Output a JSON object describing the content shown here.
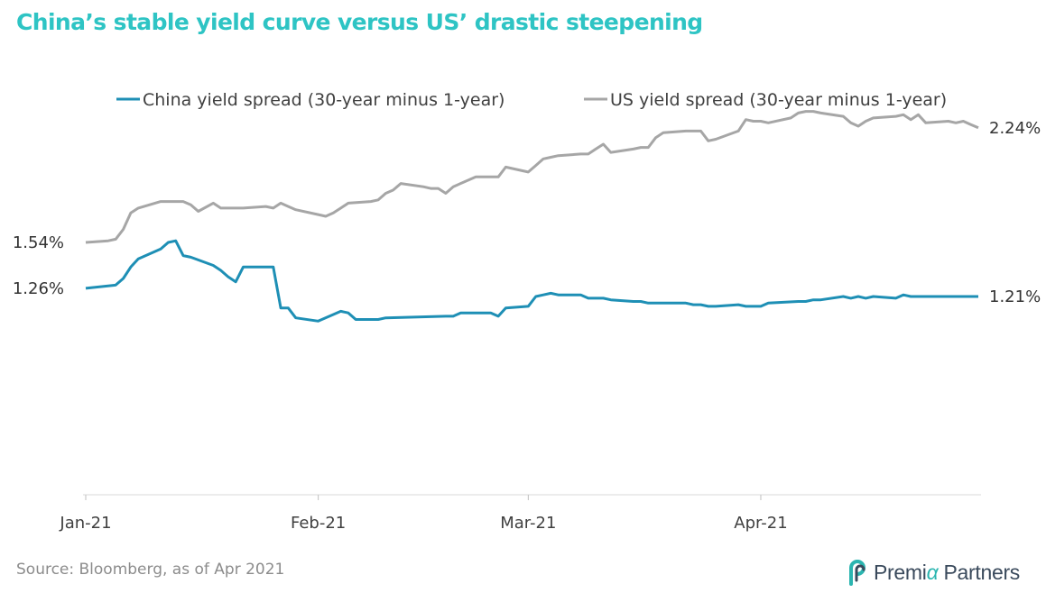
{
  "title": "China’s stable yield curve versus US’ drastic steepening",
  "source": "Source: Bloomberg, as of Apr 2021",
  "logo": {
    "name": "Premia Partners",
    "text_a": "Premi",
    "text_b": "α",
    "text_c": " Partners"
  },
  "colors": {
    "title": "#2ec4c4",
    "china": "#1e8fb5",
    "us": "#a6a6a6",
    "axis": "#d9d9d9"
  },
  "chart_data": {
    "type": "line",
    "title": "China’s stable yield curve versus US’ drastic steepening",
    "x_ticks": [
      "Jan-21",
      "Feb-21",
      "Mar-21",
      "Apr-21"
    ],
    "x_start": "2021-01-01",
    "x_end": "2021-04-30",
    "ylim": [
      0,
      2.8
    ],
    "grid": false,
    "legend": "top",
    "series": [
      {
        "name": "China yield spread (30-year minus 1-year)",
        "end_labels": {
          "start": "1.26%",
          "end": "1.21%"
        },
        "points": [
          [
            "2021-01-01",
            1.26
          ],
          [
            "2021-01-05",
            1.28
          ],
          [
            "2021-01-06",
            1.32
          ],
          [
            "2021-01-07",
            1.39
          ],
          [
            "2021-01-08",
            1.44
          ],
          [
            "2021-01-11",
            1.5
          ],
          [
            "2021-01-12",
            1.54
          ],
          [
            "2021-01-13",
            1.55
          ],
          [
            "2021-01-14",
            1.46
          ],
          [
            "2021-01-15",
            1.45
          ],
          [
            "2021-01-18",
            1.4
          ],
          [
            "2021-01-19",
            1.37
          ],
          [
            "2021-01-20",
            1.33
          ],
          [
            "2021-01-21",
            1.3
          ],
          [
            "2021-01-22",
            1.39
          ],
          [
            "2021-01-25",
            1.39
          ],
          [
            "2021-01-26",
            1.39
          ],
          [
            "2021-01-27",
            1.14
          ],
          [
            "2021-01-28",
            1.14
          ],
          [
            "2021-01-29",
            1.08
          ],
          [
            "2021-02-01",
            1.06
          ],
          [
            "2021-02-03",
            1.1
          ],
          [
            "2021-02-04",
            1.12
          ],
          [
            "2021-02-05",
            1.11
          ],
          [
            "2021-02-06",
            1.07
          ],
          [
            "2021-02-08",
            1.07
          ],
          [
            "2021-02-09",
            1.07
          ],
          [
            "2021-02-10",
            1.08
          ],
          [
            "2021-02-18",
            1.09
          ],
          [
            "2021-02-19",
            1.09
          ],
          [
            "2021-02-20",
            1.11
          ],
          [
            "2021-02-22",
            1.11
          ],
          [
            "2021-02-23",
            1.11
          ],
          [
            "2021-02-24",
            1.11
          ],
          [
            "2021-02-25",
            1.09
          ],
          [
            "2021-02-26",
            1.14
          ],
          [
            "2021-03-01",
            1.15
          ],
          [
            "2021-03-02",
            1.21
          ],
          [
            "2021-03-03",
            1.22
          ],
          [
            "2021-03-04",
            1.23
          ],
          [
            "2021-03-05",
            1.22
          ],
          [
            "2021-03-08",
            1.22
          ],
          [
            "2021-03-09",
            1.2
          ],
          [
            "2021-03-10",
            1.2
          ],
          [
            "2021-03-11",
            1.2
          ],
          [
            "2021-03-12",
            1.19
          ],
          [
            "2021-03-15",
            1.18
          ],
          [
            "2021-03-16",
            1.18
          ],
          [
            "2021-03-17",
            1.17
          ],
          [
            "2021-03-18",
            1.17
          ],
          [
            "2021-03-19",
            1.17
          ],
          [
            "2021-03-22",
            1.17
          ],
          [
            "2021-03-23",
            1.16
          ],
          [
            "2021-03-24",
            1.16
          ],
          [
            "2021-03-25",
            1.15
          ],
          [
            "2021-03-26",
            1.15
          ],
          [
            "2021-03-29",
            1.16
          ],
          [
            "2021-03-30",
            1.15
          ],
          [
            "2021-03-31",
            1.15
          ],
          [
            "2021-04-01",
            1.15
          ],
          [
            "2021-04-02",
            1.17
          ],
          [
            "2021-04-06",
            1.18
          ],
          [
            "2021-04-07",
            1.18
          ],
          [
            "2021-04-08",
            1.19
          ],
          [
            "2021-04-09",
            1.19
          ],
          [
            "2021-04-12",
            1.21
          ],
          [
            "2021-04-13",
            1.2
          ],
          [
            "2021-04-14",
            1.21
          ],
          [
            "2021-04-15",
            1.2
          ],
          [
            "2021-04-16",
            1.21
          ],
          [
            "2021-04-19",
            1.2
          ],
          [
            "2021-04-20",
            1.22
          ],
          [
            "2021-04-21",
            1.21
          ],
          [
            "2021-04-22",
            1.21
          ],
          [
            "2021-04-23",
            1.21
          ],
          [
            "2021-04-26",
            1.21
          ],
          [
            "2021-04-27",
            1.21
          ],
          [
            "2021-04-30",
            1.21
          ]
        ]
      },
      {
        "name": "US yield spread (30-year minus 1-year)",
        "end_labels": {
          "start": "1.54%",
          "end": "2.24%"
        },
        "points": [
          [
            "2021-01-01",
            1.54
          ],
          [
            "2021-01-04",
            1.55
          ],
          [
            "2021-01-05",
            1.56
          ],
          [
            "2021-01-06",
            1.62
          ],
          [
            "2021-01-07",
            1.72
          ],
          [
            "2021-01-08",
            1.75
          ],
          [
            "2021-01-11",
            1.79
          ],
          [
            "2021-01-12",
            1.79
          ],
          [
            "2021-01-13",
            1.79
          ],
          [
            "2021-01-14",
            1.79
          ],
          [
            "2021-01-15",
            1.77
          ],
          [
            "2021-01-16",
            1.73
          ],
          [
            "2021-01-18",
            1.78
          ],
          [
            "2021-01-19",
            1.75
          ],
          [
            "2021-01-20",
            1.75
          ],
          [
            "2021-01-21",
            1.75
          ],
          [
            "2021-01-22",
            1.75
          ],
          [
            "2021-01-25",
            1.76
          ],
          [
            "2021-01-26",
            1.75
          ],
          [
            "2021-01-27",
            1.78
          ],
          [
            "2021-01-28",
            1.76
          ],
          [
            "2021-01-29",
            1.74
          ],
          [
            "2021-02-01",
            1.71
          ],
          [
            "2021-02-02",
            1.7
          ],
          [
            "2021-02-03",
            1.72
          ],
          [
            "2021-02-04",
            1.75
          ],
          [
            "2021-02-05",
            1.78
          ],
          [
            "2021-02-08",
            1.79
          ],
          [
            "2021-02-09",
            1.8
          ],
          [
            "2021-02-10",
            1.84
          ],
          [
            "2021-02-11",
            1.86
          ],
          [
            "2021-02-12",
            1.9
          ],
          [
            "2021-02-15",
            1.88
          ],
          [
            "2021-02-16",
            1.87
          ],
          [
            "2021-02-17",
            1.87
          ],
          [
            "2021-02-18",
            1.84
          ],
          [
            "2021-02-19",
            1.88
          ],
          [
            "2021-02-22",
            1.94
          ],
          [
            "2021-02-23",
            1.94
          ],
          [
            "2021-02-24",
            1.94
          ],
          [
            "2021-02-25",
            1.94
          ],
          [
            "2021-02-26",
            2.0
          ],
          [
            "2021-03-01",
            1.97
          ],
          [
            "2021-03-02",
            2.01
          ],
          [
            "2021-03-03",
            2.05
          ],
          [
            "2021-03-04",
            2.06
          ],
          [
            "2021-03-05",
            2.07
          ],
          [
            "2021-03-08",
            2.08
          ],
          [
            "2021-03-09",
            2.08
          ],
          [
            "2021-03-10",
            2.11
          ],
          [
            "2021-03-11",
            2.14
          ],
          [
            "2021-03-12",
            2.09
          ],
          [
            "2021-03-15",
            2.11
          ],
          [
            "2021-03-16",
            2.12
          ],
          [
            "2021-03-17",
            2.12
          ],
          [
            "2021-03-18",
            2.18
          ],
          [
            "2021-03-19",
            2.21
          ],
          [
            "2021-03-22",
            2.22
          ],
          [
            "2021-03-23",
            2.22
          ],
          [
            "2021-03-24",
            2.22
          ],
          [
            "2021-03-25",
            2.16
          ],
          [
            "2021-03-26",
            2.17
          ],
          [
            "2021-03-29",
            2.22
          ],
          [
            "2021-03-30",
            2.29
          ],
          [
            "2021-03-31",
            2.28
          ],
          [
            "2021-04-01",
            2.28
          ],
          [
            "2021-04-02",
            2.27
          ],
          [
            "2021-04-05",
            2.3
          ],
          [
            "2021-04-06",
            2.33
          ],
          [
            "2021-04-07",
            2.34
          ],
          [
            "2021-04-08",
            2.34
          ],
          [
            "2021-04-09",
            2.33
          ],
          [
            "2021-04-12",
            2.31
          ],
          [
            "2021-04-13",
            2.27
          ],
          [
            "2021-04-14",
            2.25
          ],
          [
            "2021-04-15",
            2.28
          ],
          [
            "2021-04-16",
            2.3
          ],
          [
            "2021-04-19",
            2.31
          ],
          [
            "2021-04-20",
            2.32
          ],
          [
            "2021-04-21",
            2.29
          ],
          [
            "2021-04-22",
            2.32
          ],
          [
            "2021-04-23",
            2.27
          ],
          [
            "2021-04-26",
            2.28
          ],
          [
            "2021-04-27",
            2.27
          ],
          [
            "2021-04-28",
            2.28
          ],
          [
            "2021-04-29",
            2.26
          ],
          [
            "2021-04-30",
            2.24
          ]
        ]
      }
    ]
  }
}
